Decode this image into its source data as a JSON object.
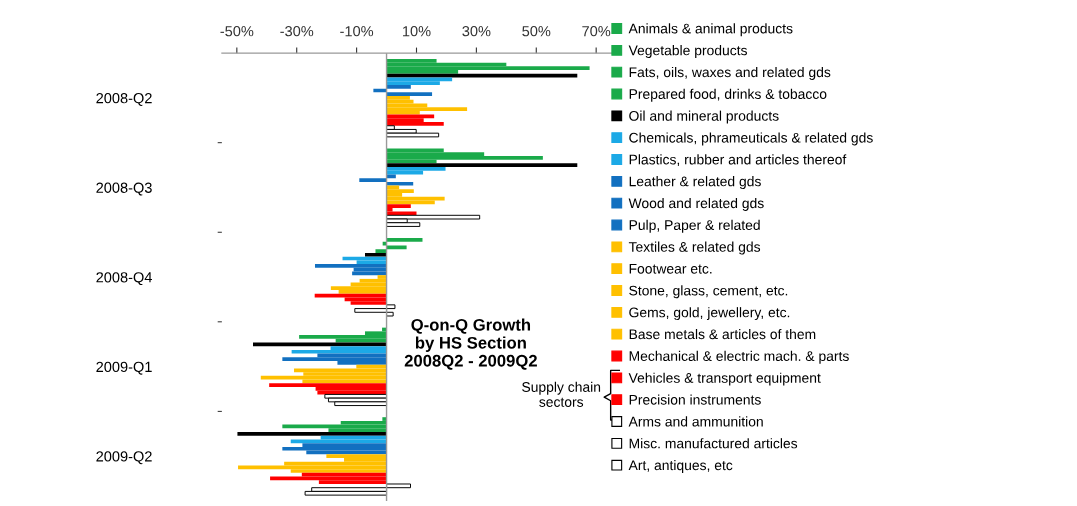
{
  "chart_data": {
    "type": "bar",
    "orientation": "horizontal",
    "title": "Q-on-Q Growth\nby HS Section\n2008Q2 - 2009Q2",
    "categories": [
      "2008-Q2",
      "2008-Q3",
      "2008-Q4",
      "2009-Q1",
      "2009-Q2"
    ],
    "xlim": [
      -55,
      77
    ],
    "xticks": [
      {
        "value": -50,
        "label": "-50%"
      },
      {
        "value": -30,
        "label": "-30%"
      },
      {
        "value": -10,
        "label": "-10%"
      },
      {
        "value": 10,
        "label": "10%"
      },
      {
        "value": 30,
        "label": "30%"
      },
      {
        "value": 50,
        "label": "50%"
      },
      {
        "value": 70,
        "label": "70%"
      }
    ],
    "grid": false,
    "legend": "right",
    "annotations": [
      "Supply chain\nsectors"
    ],
    "series": [
      {
        "name": "Animals & animal products",
        "color": "#1aaa4a",
        "values": [
          16.7,
          19.1,
          12,
          -1.5,
          -1.4
        ]
      },
      {
        "name": "Vegetable products",
        "color": "#1aaa4a",
        "values": [
          40,
          32.6,
          -1.3,
          -7.2,
          -15.3
        ]
      },
      {
        "name": "Fats, oils, waxes and related gds",
        "color": "#1aaa4a",
        "values": [
          67.8,
          52.2,
          6.7,
          -29.2,
          -34.8
        ]
      },
      {
        "name": "Prepared food, drinks & tobacco",
        "color": "#1aaa4a",
        "values": [
          23.9,
          16.7,
          -3.7,
          -17,
          -19.4
        ]
      },
      {
        "name": "Oil and mineral products",
        "color": "#000000",
        "values": [
          63.7,
          63.7,
          -7.2,
          -44.6,
          -49.8
        ]
      },
      {
        "name": "Chemicals, phrameuticals & related gds",
        "color": "#1ca9e6",
        "values": [
          21.9,
          19.7,
          -14.7,
          -18.7,
          -22
        ]
      },
      {
        "name": "Plastics, rubber and articles thereof",
        "color": "#1ca9e6",
        "values": [
          17.8,
          12.2,
          -10,
          -31.7,
          -32
        ]
      },
      {
        "name": "Leather & related gds",
        "color": "#1270c0",
        "values": [
          8.1,
          3.1,
          -23.9,
          -23.1,
          -28.1
        ]
      },
      {
        "name": "Wood and related gds",
        "color": "#1270c0",
        "values": [
          -4.4,
          -9.1,
          -11,
          -34.8,
          -34.8
        ]
      },
      {
        "name": "Pulp, Paper & related",
        "color": "#1270c0",
        "values": [
          15.2,
          8.9,
          -11.5,
          -16.4,
          -26.8
        ]
      },
      {
        "name": "Textiles & related gds",
        "color": "#ffc000",
        "values": [
          7.8,
          4.2,
          -3,
          -10.1,
          -20.1
        ]
      },
      {
        "name": "Footwear etc.",
        "color": "#ffc000",
        "values": [
          9,
          9.1,
          -9,
          -30.9,
          -14.2
        ]
      },
      {
        "name": "Stone, glass, cement, etc.",
        "color": "#ffc000",
        "values": [
          13.6,
          5.2,
          -12,
          -27.8,
          -34.2
        ]
      },
      {
        "name": "Gems, gold, jewellery, etc.",
        "color": "#ffc000",
        "values": [
          26.9,
          19.4,
          -18.6,
          -42,
          -49.6
        ]
      },
      {
        "name": "Base metals & articles of them",
        "color": "#ffc000",
        "values": [
          11.1,
          16.1,
          -16,
          -28.1,
          -32
        ]
      },
      {
        "name": "Mechanical & electric mach. & parts",
        "color": "#ff0000",
        "values": [
          15.9,
          8.1,
          -24,
          -39.2,
          -28.3
        ]
      },
      {
        "name": "Vehicles & transport equipment",
        "color": "#ff0000",
        "values": [
          12.4,
          2,
          -14,
          -23.7,
          -38.9
        ]
      },
      {
        "name": "Precision instruments",
        "color": "#ff0000",
        "values": [
          19.1,
          10,
          -12,
          -23.1,
          -22.6
        ]
      },
      {
        "name": "Arms and ammunition",
        "color": "#ffffff",
        "values": [
          2.6,
          31.1,
          2.8,
          -20.6,
          8
        ]
      },
      {
        "name": "Misc. manufactured articles",
        "color": "#ffffff",
        "values": [
          9.9,
          6.9,
          -10.6,
          -19.4,
          -25
        ]
      },
      {
        "name": "Art, antiques, etc",
        "color": "#ffffff",
        "values": [
          17.4,
          11.1,
          2.2,
          -17.3,
          -27.2
        ]
      }
    ]
  }
}
